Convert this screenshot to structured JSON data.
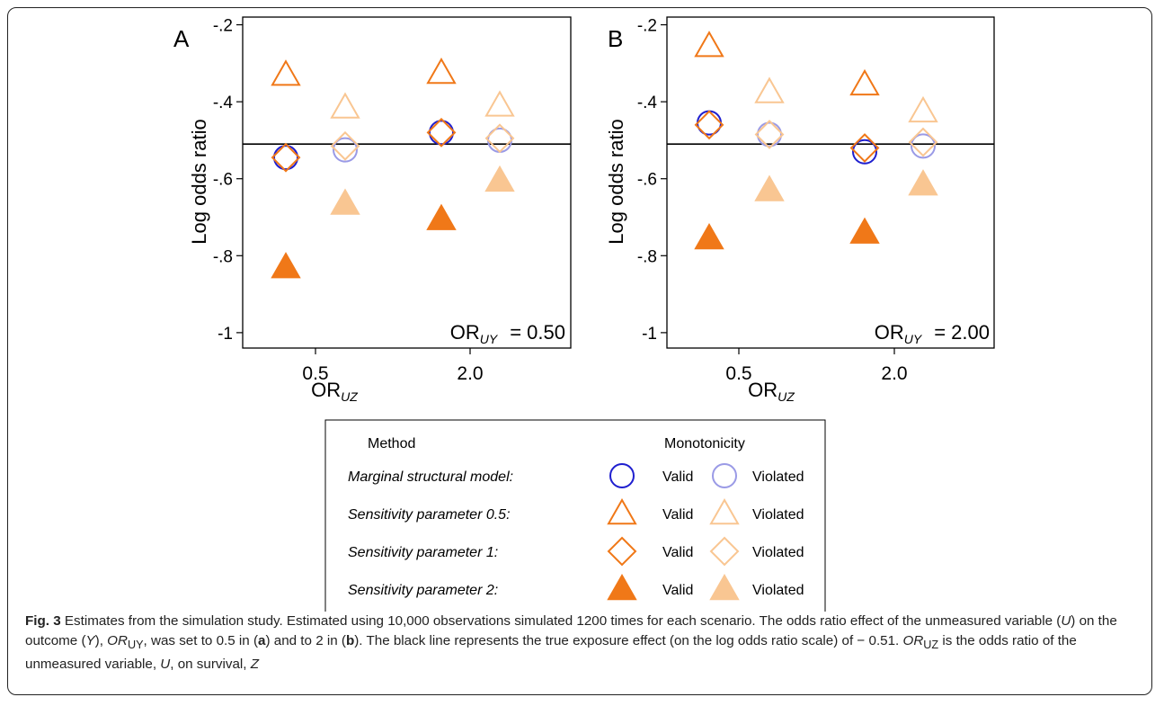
{
  "chart_data": [
    {
      "panel": "A",
      "type": "scatter",
      "x_tick_labels": [
        "0.5",
        "2.0"
      ],
      "xlabel_main": "OR",
      "xlabel_sub": "UZ",
      "ylabel": "Log odds ratio",
      "ylim": [
        -1.04,
        -0.18
      ],
      "yticks": [
        -0.2,
        -0.4,
        -0.6,
        -0.8,
        -1.0
      ],
      "ytick_labels": [
        "-.2",
        "-.4",
        "-.6",
        "-.8",
        "-1"
      ],
      "reference_line": -0.51,
      "annotation_main": "OR",
      "annotation_sub": "UY",
      "annotation_value": "= 0.50",
      "groups": [
        {
          "or_uz": "0.5",
          "monotonicity": "Valid",
          "msm": -0.545,
          "sens_0_5": -0.33,
          "sens_1": -0.545,
          "sens_2": -0.83
        },
        {
          "or_uz": "0.5",
          "monotonicity": "Violated",
          "msm": -0.525,
          "sens_0_5": -0.415,
          "sens_1": -0.515,
          "sens_2": -0.665
        },
        {
          "or_uz": "2.0",
          "monotonicity": "Valid",
          "msm": -0.48,
          "sens_0_5": -0.325,
          "sens_1": -0.48,
          "sens_2": -0.705
        },
        {
          "or_uz": "2.0",
          "monotonicity": "Violated",
          "msm": -0.5,
          "sens_0_5": -0.41,
          "sens_1": -0.495,
          "sens_2": -0.605
        }
      ]
    },
    {
      "panel": "B",
      "type": "scatter",
      "x_tick_labels": [
        "0.5",
        "2.0"
      ],
      "xlabel_main": "OR",
      "xlabel_sub": "UZ",
      "ylabel": "Log odds ratio",
      "ylim": [
        -1.04,
        -0.18
      ],
      "yticks": [
        -0.2,
        -0.4,
        -0.6,
        -0.8,
        -1.0
      ],
      "ytick_labels": [
        "-.2",
        "-.4",
        "-.6",
        "-.8",
        "-1"
      ],
      "reference_line": -0.51,
      "annotation_main": "OR",
      "annotation_sub": "UY",
      "annotation_value": "= 2.00",
      "groups": [
        {
          "or_uz": "0.5",
          "monotonicity": "Valid",
          "msm": -0.455,
          "sens_0_5": -0.255,
          "sens_1": -0.46,
          "sens_2": -0.755
        },
        {
          "or_uz": "0.5",
          "monotonicity": "Violated",
          "msm": -0.485,
          "sens_0_5": -0.375,
          "sens_1": -0.485,
          "sens_2": -0.63
        },
        {
          "or_uz": "2.0",
          "monotonicity": "Valid",
          "msm": -0.53,
          "sens_0_5": -0.355,
          "sens_1": -0.52,
          "sens_2": -0.74
        },
        {
          "or_uz": "2.0",
          "monotonicity": "Violated",
          "msm": -0.515,
          "sens_0_5": -0.425,
          "sens_1": -0.505,
          "sens_2": -0.615
        }
      ]
    }
  ],
  "styles": {
    "msm_valid": "#1f1fcf",
    "msm_violated": "#9a9ae6",
    "sens_valid": "#f07818",
    "sens_violated": "#f9c692",
    "reference_line": "#000000"
  },
  "legend": {
    "method_header": "Method",
    "monotonicity_header": "Monotonicity",
    "rows": [
      {
        "label": "Marginal structural model:",
        "marker": "circle",
        "valid": "Valid",
        "violated": "Violated"
      },
      {
        "label": "Sensitivity parameter 0.5:",
        "marker": "triangle-open",
        "valid": "Valid",
        "violated": "Violated"
      },
      {
        "label": "Sensitivity parameter 1:",
        "marker": "diamond",
        "valid": "Valid",
        "violated": "Violated"
      },
      {
        "label": "Sensitivity parameter 2:",
        "marker": "triangle-filled",
        "valid": "Valid",
        "violated": "Violated"
      }
    ]
  },
  "caption": {
    "label": "Fig. 3",
    "s1": " Estimates from the simulation study. Estimated using 10,000 observations simulated 1200 times for each scenario. The odds ratio effect of the unmeasured variable (",
    "u": "U",
    "s2": ") on the outcome (",
    "y": "Y",
    "s3": "), ",
    "or1": "OR",
    "or1_sub": "UY",
    "s4": ", was set to 0.5 in (",
    "a": "a",
    "s5": ") and to 2 in (",
    "b": "b",
    "s6": "). The black line represents the true exposure effect (on the log odds ratio scale) of − 0.51. ",
    "or2": "OR",
    "or2_sub": "UZ",
    "s7": " is the odds ratio of the unmeasured variable, ",
    "u2": "U",
    "s8": ", on survival, ",
    "z": "Z"
  }
}
